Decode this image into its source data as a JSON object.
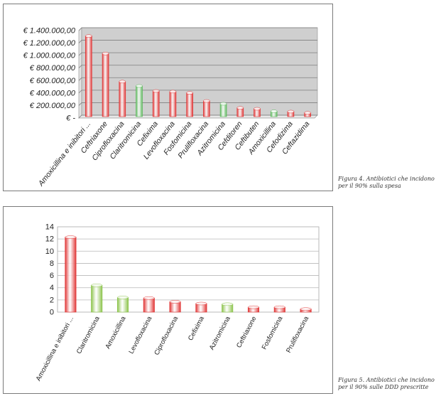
{
  "chart_data": [
    {
      "type": "bar",
      "title": "",
      "xlabel": "",
      "ylabel": "",
      "ylim": [
        0,
        1400000
      ],
      "grid": true,
      "legend": "none",
      "yticks": [
        0,
        200000,
        400000,
        600000,
        800000,
        1000000,
        1200000,
        1400000
      ],
      "ytick_labels": [
        "€ -",
        "€ 200.000,00",
        "€ 400.000,00",
        "€ 600.000,00",
        "€ 800.000,00",
        "€ 1.000.000,00",
        "€ 1.200.000,00",
        "€ 1.400.000,00"
      ],
      "categories": [
        "Amoxicillina e inibitori ...",
        "Ceftriaxone",
        "Ciprofloxacina",
        "Claritromicina",
        "Cefixima",
        "Levofloxacina",
        "Fosfomicina",
        "Prulifloxacina",
        "Azitromicina",
        "Cefditoren",
        "Ceftibuten",
        "Amoxicillina",
        "Cefodizima",
        "Ceftazidima"
      ],
      "values": [
        1290000,
        1010000,
        560000,
        490000,
        410000,
        400000,
        380000,
        250000,
        205000,
        140000,
        125000,
        85000,
        80000,
        60000
      ],
      "bar_colors": [
        "red",
        "red",
        "red",
        "green",
        "red",
        "red",
        "red",
        "red",
        "green",
        "red",
        "red",
        "green",
        "red",
        "red"
      ],
      "colors": {
        "red": "#e03434",
        "green": "#5cb85c",
        "plot_bg": "#cfcfcf"
      }
    },
    {
      "type": "bar",
      "title": "",
      "xlabel": "",
      "ylabel": "",
      "ylim": [
        0,
        14
      ],
      "grid": true,
      "legend": "none",
      "yticks": [
        0,
        2,
        4,
        6,
        8,
        10,
        12,
        14
      ],
      "ytick_labels": [
        "0",
        "2",
        "4",
        "6",
        "8",
        "10",
        "12",
        "14"
      ],
      "categories": [
        "Amoxicillina e inibitori ...",
        "Claritromicina",
        "Amoxicillina",
        "Levofloxacina",
        "Ciprofloxacina",
        "Cefixima",
        "Azitromicina",
        "Ceftriaxone",
        "Fosfomicina",
        "Prulifloxacina"
      ],
      "values": [
        12.3,
        4.4,
        2.4,
        2.3,
        1.7,
        1.4,
        1.3,
        0.8,
        0.8,
        0.5
      ],
      "bar_colors": [
        "red",
        "green",
        "green",
        "red",
        "red",
        "red",
        "green",
        "red",
        "red",
        "red"
      ],
      "colors": {
        "red": "#e03434",
        "green": "#8bc34a",
        "plot_bg": "#ffffff"
      }
    }
  ],
  "captions": {
    "fig4": [
      "Figura 4. Antibiotici che incidono",
      "per il 90% sulla spesa"
    ],
    "fig5": [
      "Figura 5. Antibiotici che incidono",
      "per il 90% sulle DDD prescritte"
    ]
  }
}
